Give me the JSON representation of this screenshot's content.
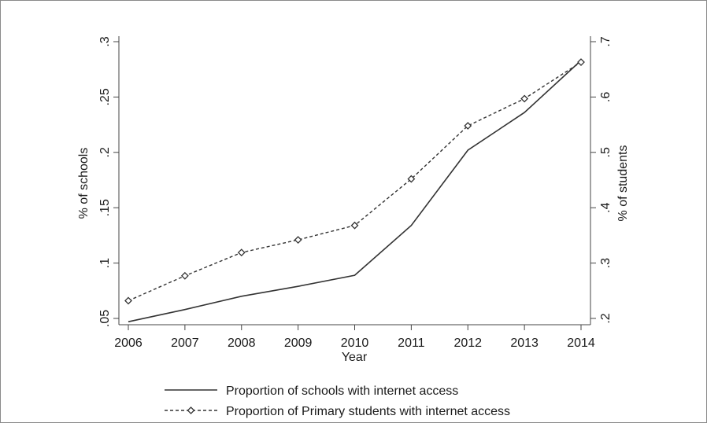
{
  "chart_data": {
    "type": "line",
    "xlabel": "Year",
    "y_left_label": "% of schools",
    "y_right_label": "% of students",
    "x": [
      2006,
      2007,
      2008,
      2009,
      2010,
      2011,
      2012,
      2013,
      2014
    ],
    "x_ticks": [
      "2006",
      "2007",
      "2008",
      "2009",
      "2010",
      "2011",
      "2012",
      "2013",
      "2014"
    ],
    "y_left_ticks": [
      ".05",
      ".1",
      ".15",
      ".2",
      ".25",
      ".3"
    ],
    "y_left_tick_values": [
      0.05,
      0.1,
      0.15,
      0.2,
      0.25,
      0.3
    ],
    "y_right_ticks": [
      ".2",
      ".3",
      ".4",
      ".5",
      ".6",
      ".7"
    ],
    "y_right_tick_values": [
      0.2,
      0.3,
      0.4,
      0.5,
      0.6,
      0.7
    ],
    "y_left_range": [
      0.05,
      0.3
    ],
    "y_right_range": [
      0.2,
      0.7
    ],
    "series": [
      {
        "name": "Proportion of schools with internet access",
        "axis": "left",
        "style": "solid",
        "marker": "none",
        "color": "#333333",
        "values": [
          0.047,
          0.058,
          0.07,
          0.079,
          0.089,
          0.134,
          0.202,
          0.236,
          0.283
        ]
      },
      {
        "name": "Proportion of Primary students with internet access",
        "axis": "right",
        "style": "dashed",
        "marker": "diamond",
        "color": "#333333",
        "values": [
          0.232,
          0.277,
          0.319,
          0.342,
          0.368,
          0.452,
          0.548,
          0.597,
          0.663
        ]
      }
    ],
    "grid": false,
    "legend_position": "bottom"
  }
}
